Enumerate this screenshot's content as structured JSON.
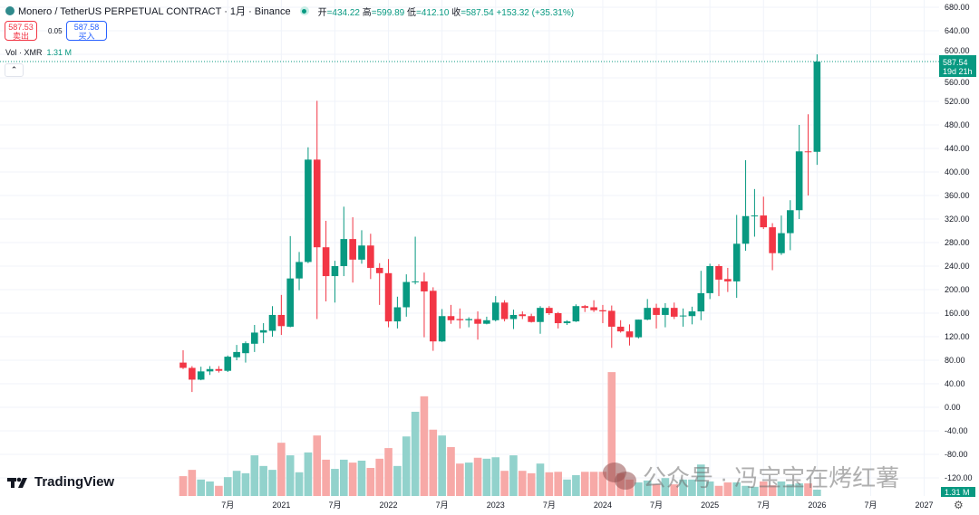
{
  "header": {
    "symbol": "Monero / TetherUS PERPETUAL CONTRACT · 1月 · Binance",
    "open_label": "开",
    "open": "=434.22",
    "high_label": "高",
    "high": "=599.89",
    "low_label": "低",
    "low": "=412.10",
    "close_label": "收",
    "close": "=587.54",
    "change": "+153.32 (+35.31%)"
  },
  "trade": {
    "sell_price": "587.53",
    "sell_label": "卖出",
    "spread": "0.05",
    "buy_price": "587.58",
    "buy_label": "买入"
  },
  "volume_legend": {
    "label": "Vol · XMR",
    "value": "1.31 M"
  },
  "collapse_icon": "chevron-up-icon",
  "price_tag": {
    "price": "587.54",
    "countdown": "19d 21h"
  },
  "volume_tag": "1.31 M",
  "branding": {
    "logo_text": "TradingView"
  },
  "watermark": "公众号 · 冯宝宝在烤红薯",
  "colors": {
    "up": "#089981",
    "down": "#f23645",
    "vol_up": "#92d2cc",
    "vol_down": "#f7a9a7",
    "grid": "#f0f3fa"
  },
  "chart_data": {
    "type": "candlestick",
    "interval": "1M",
    "start": "2020-02",
    "y_axis_ticks": [
      "680.00",
      "640.00",
      "600.00",
      "560.00",
      "520.00",
      "480.00",
      "440.00",
      "400.00",
      "360.00",
      "320.00",
      "280.00",
      "240.00",
      "200.00",
      "160.00",
      "120.00",
      "80.00",
      "40.00",
      "0.00",
      "-40.00",
      "-80.00",
      "-120.00"
    ],
    "x_axis_ticks": [
      "7月",
      "2021",
      "7月",
      "2022",
      "7月",
      "2023",
      "7月",
      "2024",
      "7月",
      "2025",
      "7月",
      "2026",
      "7月",
      "2027"
    ],
    "ohlc": [
      [
        76,
        97,
        65,
        67
      ],
      [
        67,
        70,
        26,
        47
      ],
      [
        47,
        69,
        46,
        61
      ],
      [
        61,
        70,
        55,
        65
      ],
      [
        65,
        70,
        59,
        62
      ],
      [
        62,
        88,
        60,
        86
      ],
      [
        85,
        106,
        80,
        94
      ],
      [
        92,
        112,
        76,
        109
      ],
      [
        108,
        140,
        94,
        127
      ],
      [
        127,
        143,
        109,
        131
      ],
      [
        130,
        172,
        120,
        157
      ],
      [
        157,
        191,
        123,
        138
      ],
      [
        137,
        291,
        136,
        219
      ],
      [
        219,
        264,
        199,
        247
      ],
      [
        247,
        442,
        245,
        421
      ],
      [
        421,
        521,
        150,
        272
      ],
      [
        272,
        317,
        180,
        223
      ],
      [
        223,
        249,
        178,
        240
      ],
      [
        240,
        341,
        223,
        286
      ],
      [
        286,
        323,
        212,
        251
      ],
      [
        251,
        301,
        244,
        275
      ],
      [
        275,
        295,
        218,
        237
      ],
      [
        237,
        245,
        174,
        228
      ],
      [
        228,
        252,
        136,
        146
      ],
      [
        146,
        188,
        134,
        170
      ],
      [
        170,
        226,
        154,
        213
      ],
      [
        213,
        290,
        209,
        214
      ],
      [
        214,
        229,
        119,
        197
      ],
      [
        198,
        204,
        96,
        112
      ],
      [
        112,
        167,
        111,
        155
      ],
      [
        155,
        174,
        142,
        148
      ],
      [
        150,
        168,
        134,
        148
      ],
      [
        148,
        153,
        136,
        150
      ],
      [
        150,
        163,
        115,
        142
      ],
      [
        142,
        154,
        141,
        148
      ],
      [
        148,
        189,
        146,
        178
      ],
      [
        178,
        182,
        146,
        150
      ],
      [
        150,
        166,
        133,
        157
      ],
      [
        158,
        163,
        150,
        155
      ],
      [
        155,
        159,
        144,
        145
      ],
      [
        145,
        172,
        125,
        169
      ],
      [
        169,
        172,
        157,
        160
      ],
      [
        160,
        162,
        134,
        143
      ],
      [
        143,
        148,
        140,
        146
      ],
      [
        146,
        175,
        145,
        172
      ],
      [
        172,
        174,
        162,
        169
      ],
      [
        170,
        182,
        162,
        165
      ],
      [
        165,
        174,
        143,
        163
      ],
      [
        164,
        173,
        101,
        137
      ],
      [
        137,
        148,
        127,
        129
      ],
      [
        129,
        141,
        105,
        119
      ],
      [
        119,
        149,
        117,
        149
      ],
      [
        149,
        184,
        148,
        169
      ],
      [
        169,
        176,
        134,
        157
      ],
      [
        157,
        177,
        136,
        169
      ],
      [
        169,
        178,
        150,
        154
      ],
      [
        155,
        168,
        137,
        156
      ],
      [
        155,
        171,
        141,
        163
      ],
      [
        163,
        232,
        148,
        194
      ],
      [
        194,
        244,
        184,
        240
      ],
      [
        240,
        243,
        189,
        217
      ],
      [
        218,
        237,
        196,
        214
      ],
      [
        214,
        327,
        186,
        278
      ],
      [
        278,
        420,
        266,
        325
      ],
      [
        325,
        371,
        290,
        326
      ],
      [
        326,
        358,
        303,
        306
      ],
      [
        306,
        313,
        233,
        262
      ],
      [
        262,
        326,
        259,
        296
      ],
      [
        296,
        352,
        267,
        335
      ],
      [
        335,
        480,
        320,
        435
      ],
      [
        435,
        498,
        360,
        434
      ],
      [
        434.22,
        599.89,
        412.1,
        587.54
      ]
    ],
    "volume_millions": [
      4.1,
      5.4,
      3.4,
      3.0,
      2.1,
      3.9,
      5.2,
      4.7,
      8.4,
      6.2,
      5.4,
      11.0,
      8.4,
      4.9,
      9.0,
      12.5,
      7.5,
      5.6,
      7.5,
      6.9,
      7.3,
      5.8,
      7.7,
      9.9,
      6.2,
      12.3,
      17.4,
      20.6,
      13.7,
      12.5,
      10.1,
      6.7,
      6.9,
      7.9,
      7.7,
      8.0,
      5.2,
      8.4,
      5.2,
      4.7,
      6.7,
      4.9,
      5.0,
      3.4,
      4.3,
      5.0,
      5.0,
      5.0,
      25.6,
      4.7,
      3.4,
      2.8,
      3.2,
      2.4,
      3.7,
      2.4,
      3.4,
      3.4,
      6.5,
      3.0,
      2.1,
      2.8,
      2.8,
      2.1,
      1.9,
      3.0,
      2.2,
      3.0,
      2.4,
      2.6,
      2.6,
      1.31
    ]
  }
}
